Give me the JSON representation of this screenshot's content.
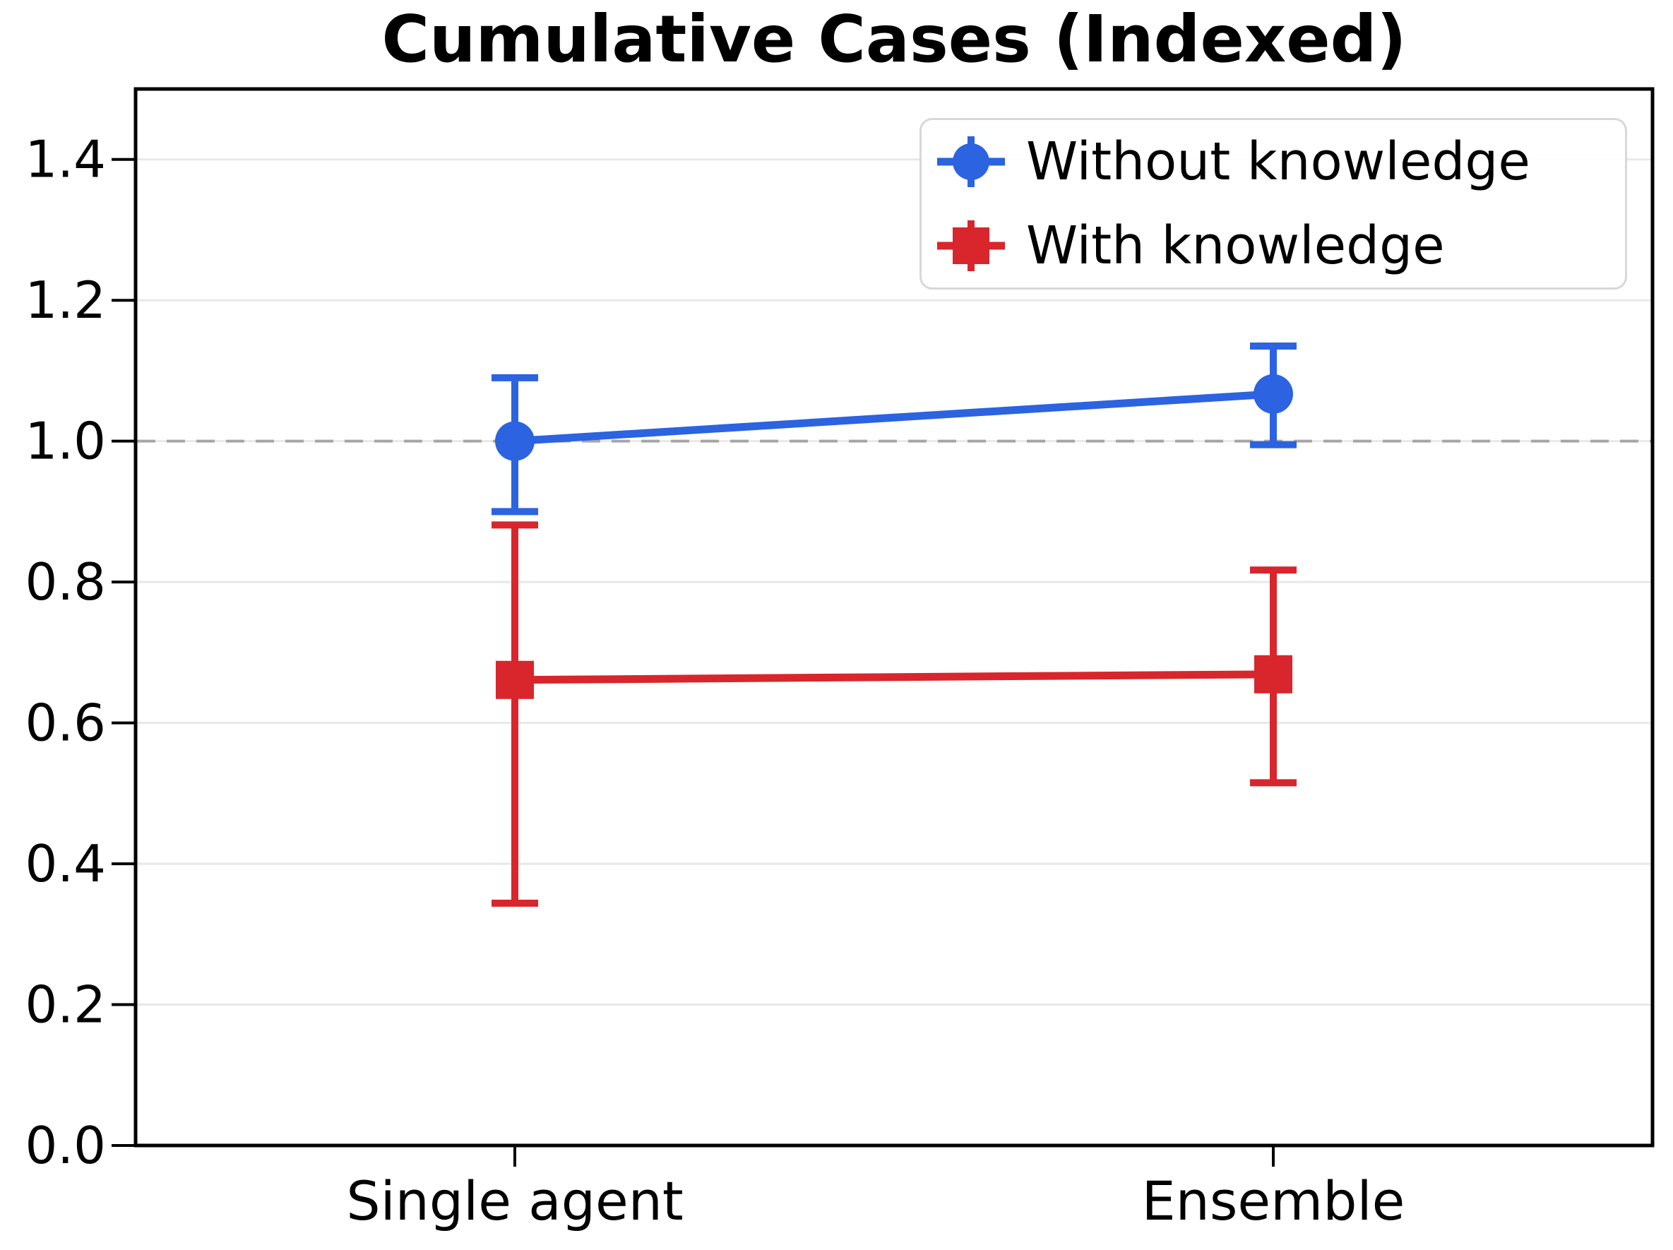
{
  "chart_data": {
    "type": "line",
    "title": "Cumulative Cases (Indexed)",
    "categories": [
      "Single agent",
      "Ensemble"
    ],
    "series": [
      {
        "name": "Without knowledge",
        "marker": "circle",
        "color": "#2b63e0",
        "values": [
          1.0,
          1.067
        ],
        "err_minus": [
          0.1,
          0.072
        ],
        "err_plus": [
          0.09,
          0.068
        ]
      },
      {
        "name": "With knowledge",
        "marker": "square",
        "color": "#d8262c",
        "values": [
          0.661,
          0.669
        ],
        "err_minus": [
          0.317,
          0.154
        ],
        "err_plus": [
          0.22,
          0.148
        ]
      }
    ],
    "ylim": [
      0,
      1.5
    ],
    "ytick_labels": [
      "0.0",
      "0.2",
      "0.4",
      "0.6",
      "0.8",
      "1.0",
      "1.2",
      "1.4"
    ],
    "reference_line": {
      "value": 1.0,
      "style": "dashed",
      "color": "#a6a6a6"
    },
    "grid": "horizontal",
    "grid_color": "#e8e8e8",
    "frame_color": "#000000",
    "legend_position": "top-right"
  }
}
